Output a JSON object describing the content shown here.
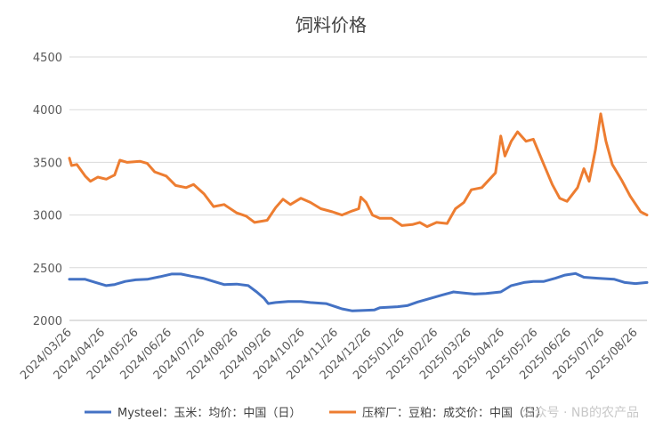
{
  "chart_data": {
    "type": "line",
    "title": "饲料价格",
    "ylim": [
      2000,
      4500
    ],
    "yticks": [
      2000,
      2500,
      3000,
      3500,
      4000,
      4500
    ],
    "grid": true,
    "legend_position": "bottom",
    "x_tick_labels": [
      "2024/03/26",
      "2024/04/26",
      "2024/05/26",
      "2024/06/26",
      "2024/07/26",
      "2024/08/26",
      "2024/09/26",
      "2024/10/26",
      "2024/11/26",
      "2024/12/26",
      "2025/01/26",
      "2025/02/26",
      "2025/03/26",
      "2025/04/26",
      "2025/05/26",
      "2025/06/26",
      "2025/07/26",
      "2025/08/26"
    ],
    "x_range": [
      "2024-03-26",
      "2025-09-26"
    ],
    "series": [
      {
        "name": "Mysteel：玉米：均价：中国（日）",
        "color": "#4472C4",
        "points": [
          [
            "2024-03-26",
            2390
          ],
          [
            "2024-04-10",
            2390
          ],
          [
            "2024-04-20",
            2360
          ],
          [
            "2024-04-30",
            2330
          ],
          [
            "2024-05-08",
            2340
          ],
          [
            "2024-05-18",
            2370
          ],
          [
            "2024-05-28",
            2385
          ],
          [
            "2024-06-08",
            2390
          ],
          [
            "2024-06-20",
            2415
          ],
          [
            "2024-07-01",
            2440
          ],
          [
            "2024-07-10",
            2440
          ],
          [
            "2024-07-20",
            2420
          ],
          [
            "2024-07-31",
            2400
          ],
          [
            "2024-08-10",
            2370
          ],
          [
            "2024-08-20",
            2340
          ],
          [
            "2024-09-01",
            2345
          ],
          [
            "2024-09-12",
            2330
          ],
          [
            "2024-09-20",
            2270
          ],
          [
            "2024-09-27",
            2210
          ],
          [
            "2024-10-01",
            2160
          ],
          [
            "2024-10-08",
            2170
          ],
          [
            "2024-10-20",
            2180
          ],
          [
            "2024-11-01",
            2180
          ],
          [
            "2024-11-10",
            2170
          ],
          [
            "2024-11-25",
            2160
          ],
          [
            "2024-12-01",
            2140
          ],
          [
            "2024-12-10",
            2110
          ],
          [
            "2024-12-20",
            2090
          ],
          [
            "2024-12-31",
            2095
          ],
          [
            "2025-01-10",
            2100
          ],
          [
            "2025-01-15",
            2120
          ],
          [
            "2025-02-01",
            2130
          ],
          [
            "2025-02-10",
            2140
          ],
          [
            "2025-02-20",
            2175
          ],
          [
            "2025-03-01",
            2200
          ],
          [
            "2025-03-15",
            2240
          ],
          [
            "2025-03-26",
            2270
          ],
          [
            "2025-04-05",
            2260
          ],
          [
            "2025-04-15",
            2250
          ],
          [
            "2025-04-26",
            2255
          ],
          [
            "2025-05-10",
            2270
          ],
          [
            "2025-05-20",
            2330
          ],
          [
            "2025-06-01",
            2360
          ],
          [
            "2025-06-10",
            2370
          ],
          [
            "2025-06-20",
            2370
          ],
          [
            "2025-07-01",
            2400
          ],
          [
            "2025-07-10",
            2430
          ],
          [
            "2025-07-20",
            2445
          ],
          [
            "2025-07-28",
            2410
          ],
          [
            "2025-08-10",
            2400
          ],
          [
            "2025-08-26",
            2390
          ],
          [
            "2025-09-05",
            2360
          ],
          [
            "2025-09-15",
            2350
          ],
          [
            "2025-09-26",
            2360
          ]
        ]
      },
      {
        "name": "压榨厂：豆粕：成交价：中国（日）",
        "color": "#ED7D31",
        "points": [
          [
            "2024-03-26",
            3540
          ],
          [
            "2024-03-28",
            3470
          ],
          [
            "2024-04-02",
            3480
          ],
          [
            "2024-04-10",
            3370
          ],
          [
            "2024-04-15",
            3320
          ],
          [
            "2024-04-22",
            3360
          ],
          [
            "2024-04-30",
            3340
          ],
          [
            "2024-05-08",
            3380
          ],
          [
            "2024-05-13",
            3520
          ],
          [
            "2024-05-20",
            3500
          ],
          [
            "2024-06-01",
            3510
          ],
          [
            "2024-06-08",
            3490
          ],
          [
            "2024-06-15",
            3410
          ],
          [
            "2024-06-26",
            3370
          ],
          [
            "2024-07-05",
            3280
          ],
          [
            "2024-07-15",
            3260
          ],
          [
            "2024-07-22",
            3290
          ],
          [
            "2024-08-01",
            3200
          ],
          [
            "2024-08-10",
            3080
          ],
          [
            "2024-08-20",
            3100
          ],
          [
            "2024-09-01",
            3020
          ],
          [
            "2024-09-10",
            2990
          ],
          [
            "2024-09-18",
            2930
          ],
          [
            "2024-09-30",
            2950
          ],
          [
            "2024-10-08",
            3070
          ],
          [
            "2024-10-15",
            3150
          ],
          [
            "2024-10-22",
            3100
          ],
          [
            "2024-11-01",
            3160
          ],
          [
            "2024-11-10",
            3120
          ],
          [
            "2024-11-20",
            3060
          ],
          [
            "2024-12-01",
            3030
          ],
          [
            "2024-12-10",
            3000
          ],
          [
            "2024-12-20",
            3040
          ],
          [
            "2024-12-26",
            3060
          ],
          [
            "2024-12-28",
            3170
          ],
          [
            "2025-01-02",
            3120
          ],
          [
            "2025-01-08",
            3000
          ],
          [
            "2025-01-15",
            2970
          ],
          [
            "2025-01-26",
            2970
          ],
          [
            "2025-02-05",
            2900
          ],
          [
            "2025-02-15",
            2910
          ],
          [
            "2025-02-22",
            2930
          ],
          [
            "2025-03-01",
            2890
          ],
          [
            "2025-03-10",
            2930
          ],
          [
            "2025-03-20",
            2920
          ],
          [
            "2025-03-28",
            3060
          ],
          [
            "2025-04-05",
            3120
          ],
          [
            "2025-04-12",
            3240
          ],
          [
            "2025-04-22",
            3260
          ],
          [
            "2025-05-05",
            3400
          ],
          [
            "2025-05-10",
            3750
          ],
          [
            "2025-05-14",
            3560
          ],
          [
            "2025-05-20",
            3700
          ],
          [
            "2025-05-26",
            3790
          ],
          [
            "2025-06-03",
            3700
          ],
          [
            "2025-06-10",
            3720
          ],
          [
            "2025-06-20",
            3480
          ],
          [
            "2025-06-28",
            3290
          ],
          [
            "2025-07-05",
            3160
          ],
          [
            "2025-07-12",
            3130
          ],
          [
            "2025-07-22",
            3260
          ],
          [
            "2025-07-28",
            3440
          ],
          [
            "2025-08-02",
            3320
          ],
          [
            "2025-08-08",
            3620
          ],
          [
            "2025-08-13",
            3960
          ],
          [
            "2025-08-18",
            3700
          ],
          [
            "2025-08-24",
            3480
          ],
          [
            "2025-09-02",
            3330
          ],
          [
            "2025-09-10",
            3180
          ],
          [
            "2025-09-20",
            3030
          ],
          [
            "2025-09-26",
            3000
          ]
        ]
      }
    ]
  },
  "watermark": "公众号 · NB的农产品"
}
